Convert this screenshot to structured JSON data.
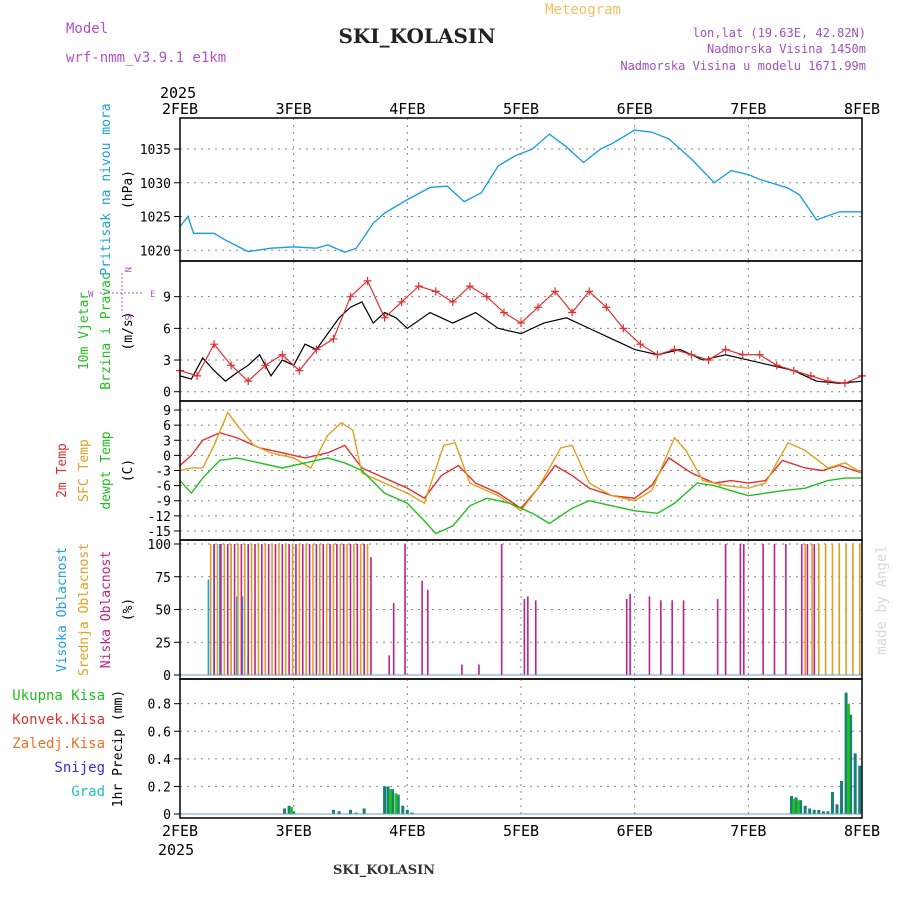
{
  "header": {
    "model_label": "Model",
    "model_name": "wrf-nmm_v3.9.1 e1km",
    "title": "SKI_KOLASIN",
    "meteogram": "Meteogram",
    "lonlat": "lon,lat (19.63E, 42.82N)",
    "altitude": "Nadmorska Visina 1450m",
    "model_altitude": "Nadmorska Visina u modelu 1671.99m",
    "footer_title": "SKI_KOLASIN",
    "watermark": "made by Angel",
    "year_top": "2025",
    "year_bottom": "2025",
    "colors": {
      "model": "#b050d0",
      "meteogram": "#f0c060",
      "info": "#a050c0",
      "title": "#222222"
    }
  },
  "chart_data": {
    "x_ticks": [
      "2FEB",
      "3FEB",
      "4FEB",
      "5FEB",
      "6FEB",
      "7FEB",
      "8FEB"
    ],
    "panels": [
      {
        "id": "pressure",
        "type": "line",
        "ylabels": [
          {
            "text": "Pritisak na nivou mora",
            "color": "#1ea0e0"
          },
          {
            "text": "(hPa)",
            "color": "#000000"
          }
        ],
        "yticks": [
          1020,
          1025,
          1030,
          1035
        ],
        "ylim": [
          1019,
          1039
        ],
        "series": [
          {
            "color": "#1ea0e0",
            "x": [
              0,
              0.07,
              0.12,
              0.2,
              0.3,
              0.4,
              0.6,
              0.8,
              1.0,
              1.2,
              1.3,
              1.45,
              1.55,
              1.62,
              1.7,
              1.8,
              2.0,
              2.2,
              2.35,
              2.5,
              2.65,
              2.8,
              2.95,
              3.1,
              3.25,
              3.4,
              3.55,
              3.7,
              3.8,
              4.0,
              4.15,
              4.3,
              4.5,
              4.7,
              4.85,
              5.0,
              5.1,
              5.2,
              5.35,
              5.45,
              5.6,
              5.8,
              6.0
            ],
            "y": [
              1023.5,
              1025,
              1022.5,
              1022.5,
              1022.5,
              1021.5,
              1019.8,
              1020.3,
              1020.5,
              1020.3,
              1020.8,
              1019.7,
              1020.3,
              1022,
              1024,
              1025.5,
              1027.5,
              1029.3,
              1029.5,
              1027.2,
              1028.5,
              1032.5,
              1034,
              1035,
              1037.2,
              1035.3,
              1033,
              1035,
              1035.8,
              1037.8,
              1037.5,
              1036.5,
              1033.5,
              1030,
              1031.8,
              1031.2,
              1030.5,
              1030,
              1029.2,
              1028.2,
              1024.5,
              1025.7,
              1025.7
            ]
          }
        ]
      },
      {
        "id": "wind",
        "type": "line",
        "ylabels": [
          {
            "text": "10m Vjetar",
            "color": "#20c020"
          },
          {
            "text": "Brzina i Pravac",
            "color": "#20c020"
          },
          {
            "text": "(m/s)",
            "color": "#000000"
          }
        ],
        "direction_legend": {
          "n": "N",
          "s": "S",
          "w": "W",
          "e": "E",
          "color": "#b050d0"
        },
        "yticks": [
          0,
          3,
          6,
          9
        ],
        "ylim": [
          -0.5,
          12
        ],
        "series": [
          {
            "color": "#000000",
            "x": [
              0,
              0.1,
              0.2,
              0.3,
              0.4,
              0.5,
              0.6,
              0.7,
              0.8,
              0.9,
              1.0,
              1.1,
              1.2,
              1.3,
              1.4,
              1.5,
              1.6,
              1.7,
              1.8,
              1.9,
              2.0,
              2.2,
              2.4,
              2.6,
              2.8,
              3.0,
              3.2,
              3.4,
              3.6,
              3.8,
              4.0,
              4.2,
              4.4,
              4.6,
              4.8,
              5.0,
              5.2,
              5.4,
              5.6,
              5.8,
              6.0
            ],
            "y": [
              1.5,
              1.2,
              3.2,
              2.0,
              1.0,
              1.8,
              2.5,
              3.5,
              1.5,
              3.0,
              2.5,
              4.5,
              4.0,
              5.5,
              7.0,
              8.0,
              8.5,
              6.5,
              7.5,
              7.0,
              6.0,
              7.5,
              6.5,
              7.5,
              6.0,
              5.5,
              6.5,
              7.0,
              6.0,
              5.0,
              4.0,
              3.5,
              4.0,
              3.0,
              3.5,
              3.0,
              2.5,
              2.0,
              1.0,
              0.8,
              1.0
            ]
          },
          {
            "color": "#e03030",
            "marker": "+",
            "x": [
              0,
              0.15,
              0.3,
              0.45,
              0.6,
              0.75,
              0.9,
              1.05,
              1.2,
              1.35,
              1.5,
              1.65,
              1.8,
              1.95,
              2.1,
              2.25,
              2.4,
              2.55,
              2.7,
              2.85,
              3.0,
              3.15,
              3.3,
              3.45,
              3.6,
              3.75,
              3.9,
              4.05,
              4.2,
              4.35,
              4.5,
              4.65,
              4.8,
              4.95,
              5.1,
              5.25,
              5.4,
              5.55,
              5.7,
              5.85,
              6.0
            ],
            "y": [
              2.0,
              1.5,
              4.5,
              2.5,
              1.0,
              2.5,
              3.5,
              2.0,
              4.0,
              5.0,
              9.0,
              10.5,
              7.0,
              8.5,
              10.0,
              9.5,
              8.5,
              10.0,
              9.0,
              7.5,
              6.5,
              8.0,
              9.5,
              7.5,
              9.5,
              8.0,
              6.0,
              4.5,
              3.5,
              4.0,
              3.5,
              3.0,
              4.0,
              3.5,
              3.5,
              2.5,
              2.0,
              1.5,
              1.0,
              0.8,
              1.5
            ]
          }
        ]
      },
      {
        "id": "temperature",
        "type": "line",
        "ylabels": [
          {
            "text": "2m Temp",
            "color": "#e03030"
          },
          {
            "text": "SFC Temp",
            "color": "#e0a020"
          },
          {
            "text": "dewpt Temp",
            "color": "#20c020"
          },
          {
            "text": "(C)",
            "color": "#000000"
          }
        ],
        "yticks": [
          -15,
          -12,
          -9,
          -6,
          -3,
          0,
          3,
          6,
          9
        ],
        "ylim": [
          -16,
          10
        ],
        "series": [
          {
            "color": "#e03030",
            "x": [
              0,
              0.1,
              0.2,
              0.35,
              0.5,
              0.7,
              0.9,
              1.1,
              1.3,
              1.45,
              1.6,
              1.8,
              2.0,
              2.15,
              2.3,
              2.45,
              2.6,
              2.8,
              3.0,
              3.15,
              3.3,
              3.45,
              3.6,
              3.8,
              4.0,
              4.15,
              4.3,
              4.5,
              4.7,
              4.85,
              5.0,
              5.15,
              5.3,
              5.5,
              5.65,
              5.8,
              6.0
            ],
            "y": [
              -2,
              0,
              3,
              4.5,
              3.5,
              1.5,
              0.5,
              -0.5,
              0.5,
              2.0,
              -2.5,
              -4.5,
              -6.5,
              -8.5,
              -4.0,
              -2.0,
              -5.5,
              -7.5,
              -10.5,
              -6.5,
              -2.0,
              -4.0,
              -6.5,
              -8.0,
              -8.5,
              -6.0,
              -0.5,
              -3.5,
              -5.5,
              -5.0,
              -5.5,
              -5.0,
              -1.0,
              -2.5,
              -3.0,
              -2.0,
              -3.5
            ]
          },
          {
            "color": "#e0a020",
            "x": [
              0,
              0.1,
              0.2,
              0.3,
              0.42,
              0.52,
              0.65,
              0.8,
              1.0,
              1.15,
              1.3,
              1.42,
              1.52,
              1.6,
              1.8,
              2.0,
              2.15,
              2.32,
              2.42,
              2.55,
              2.8,
              3.0,
              3.15,
              3.35,
              3.45,
              3.6,
              3.8,
              4.0,
              4.15,
              4.35,
              4.45,
              4.6,
              4.8,
              5.0,
              5.15,
              5.35,
              5.5,
              5.7,
              5.85,
              6.0
            ],
            "y": [
              -3,
              -2.5,
              -2.5,
              2.0,
              8.5,
              5.5,
              2.0,
              0.5,
              -0.5,
              -2.5,
              4.0,
              6.5,
              5.0,
              -3.5,
              -5.5,
              -7.5,
              -9.5,
              2.0,
              2.5,
              -5.5,
              -8.0,
              -11.0,
              -6.5,
              1.5,
              2.0,
              -5.5,
              -8.0,
              -9.0,
              -7.0,
              3.5,
              1.0,
              -5.0,
              -6.0,
              -6.5,
              -5.5,
              2.5,
              1.0,
              -2.5,
              -1.5,
              -3.5
            ]
          },
          {
            "color": "#20c020",
            "x": [
              0,
              0.1,
              0.2,
              0.35,
              0.5,
              0.7,
              0.9,
              1.1,
              1.3,
              1.45,
              1.6,
              1.8,
              2.0,
              2.15,
              2.25,
              2.4,
              2.55,
              2.7,
              2.9,
              3.1,
              3.25,
              3.45,
              3.6,
              3.8,
              4.0,
              4.2,
              4.35,
              4.55,
              4.7,
              4.85,
              5.0,
              5.15,
              5.3,
              5.5,
              5.7,
              5.85,
              6.0
            ],
            "y": [
              -5,
              -7.5,
              -4.5,
              -1.0,
              -0.5,
              -1.5,
              -2.5,
              -1.5,
              -0.5,
              -1.5,
              -3.0,
              -7.5,
              -9.5,
              -13.0,
              -15.5,
              -14.0,
              -10.0,
              -8.5,
              -9.5,
              -11.5,
              -13.5,
              -10.5,
              -9.0,
              -10.0,
              -11.0,
              -11.5,
              -9.5,
              -5.5,
              -6.0,
              -7.0,
              -8.0,
              -7.5,
              -7.0,
              -6.5,
              -5.0,
              -4.5,
              -4.5
            ]
          }
        ]
      },
      {
        "id": "clouds",
        "type": "bar",
        "ylabels": [
          {
            "text": "Visoka Oblacnost",
            "color": "#1ea0e0"
          },
          {
            "text": "Srednja Oblacnost",
            "color": "#e0a020"
          },
          {
            "text": "Niska Oblacnost",
            "color": "#c0208a"
          },
          {
            "text": "(%)",
            "color": "#000000"
          }
        ],
        "yticks": [
          0,
          25,
          50,
          75,
          100
        ],
        "ylim": [
          0,
          100
        ],
        "series": [
          {
            "color": "#1ea0e0",
            "x": [
              0.25,
              0.3,
              0.35,
              0.45,
              0.5,
              0.55,
              0.6
            ],
            "values": [
              73,
              100,
              100,
              100,
              60,
              60,
              15
            ]
          },
          {
            "color": "#e0a020",
            "x": [
              0.27,
              0.33,
              0.39,
              0.45,
              0.51,
              0.57,
              0.63,
              0.69,
              0.75,
              0.81,
              0.87,
              0.93,
              0.99,
              1.05,
              1.11,
              1.17,
              1.23,
              1.29,
              1.35,
              1.41,
              1.47,
              1.53,
              1.59,
              1.65,
              5.5,
              5.56,
              5.62,
              5.68,
              5.74,
              5.8,
              5.86,
              5.92,
              5.98
            ],
            "values": [
              100,
              100,
              100,
              100,
              100,
              100,
              100,
              100,
              100,
              100,
              100,
              100,
              100,
              100,
              100,
              100,
              100,
              100,
              100,
              100,
              100,
              100,
              100,
              100,
              100,
              100,
              100,
              100,
              100,
              100,
              100,
              100,
              100
            ]
          },
          {
            "color": "#c0208a",
            "x": [
              0.3,
              0.36,
              0.42,
              0.48,
              0.54,
              0.6,
              0.66,
              0.72,
              0.78,
              0.84,
              0.9,
              0.96,
              1.02,
              1.08,
              1.14,
              1.2,
              1.26,
              1.32,
              1.38,
              1.44,
              1.5,
              1.56,
              1.62,
              1.68,
              1.84,
              1.88,
              1.98,
              2.13,
              2.18,
              2.48,
              2.63,
              2.83,
              3.03,
              3.06,
              3.13,
              3.93,
              3.96,
              4.13,
              4.23,
              4.33,
              4.43,
              4.73,
              4.8,
              4.93,
              4.96,
              5.13,
              5.23,
              5.33,
              5.47,
              5.52,
              5.58
            ],
            "values": [
              100,
              100,
              100,
              100,
              100,
              100,
              100,
              100,
              100,
              100,
              100,
              100,
              100,
              100,
              100,
              100,
              100,
              100,
              100,
              100,
              100,
              100,
              100,
              90,
              15,
              55,
              100,
              72,
              65,
              8,
              8,
              100,
              58,
              60,
              57,
              58,
              62,
              60,
              57,
              57,
              57,
              58,
              100,
              100,
              100,
              100,
              100,
              100,
              100,
              100,
              100
            ]
          }
        ]
      },
      {
        "id": "precip",
        "type": "bar",
        "ylabels": [
          {
            "text": "1hr Precip (mm)",
            "color": "#000000"
          }
        ],
        "legend": [
          {
            "text": "Ukupna Kisa",
            "color": "#20c020"
          },
          {
            "text": "Konvek.Kisa",
            "color": "#e03030"
          },
          {
            "text": "Zaledj.Kisa",
            "color": "#f07020"
          },
          {
            "text": "Snijeg",
            "color": "#3030e0"
          },
          {
            "text": "Grad",
            "color": "#20c0c0"
          }
        ],
        "yticks": [
          0,
          0.2,
          0.4,
          0.6,
          0.8
        ],
        "ylim": [
          0,
          0.95
        ],
        "series": [
          {
            "color": "#1a7f7a",
            "x": [
              0.92,
              0.96,
              1.0,
              1.35,
              1.4,
              1.5,
              1.55,
              1.62,
              1.8,
              1.83,
              1.87,
              1.92,
              1.96,
              2.0,
              2.04,
              5.38,
              5.42,
              5.46,
              5.5,
              5.54,
              5.58,
              5.62,
              5.66,
              5.7,
              5.74,
              5.78,
              5.82,
              5.86,
              5.9,
              5.94,
              5.98
            ],
            "values": [
              0.04,
              0.06,
              0.02,
              0.03,
              0.02,
              0.03,
              0.01,
              0.04,
              0.2,
              0.2,
              0.18,
              0.14,
              0.06,
              0.03,
              0.01,
              0.13,
              0.12,
              0.1,
              0.06,
              0.04,
              0.03,
              0.03,
              0.02,
              0.02,
              0.16,
              0.07,
              0.24,
              0.88,
              0.72,
              0.44,
              0.35
            ]
          },
          {
            "color": "#20c020",
            "x": [
              0.98,
              1.85,
              1.9,
              5.4,
              5.44,
              5.88
            ],
            "values": [
              0.05,
              0.18,
              0.15,
              0.11,
              0.1,
              0.8
            ]
          }
        ]
      }
    ]
  }
}
